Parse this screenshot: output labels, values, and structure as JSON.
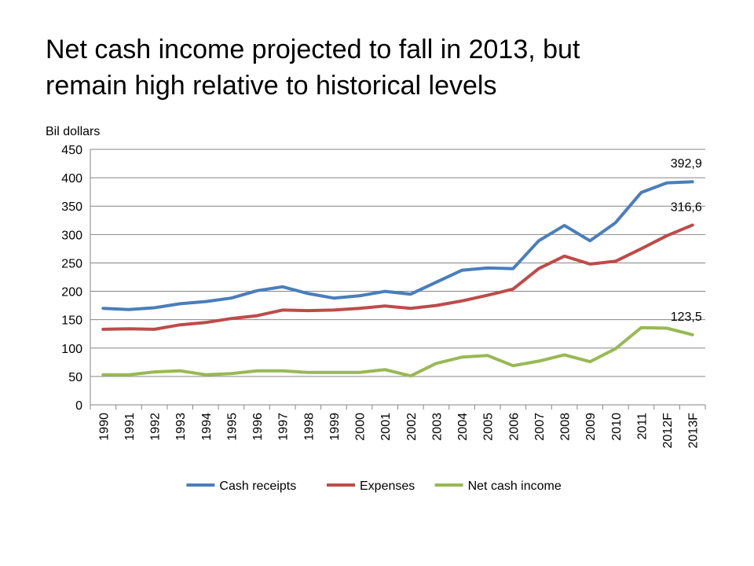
{
  "slide": {
    "title_line1": "Net cash income projected to fall in 2013, but",
    "title_line2": "remain high relative to historical levels"
  },
  "chart_data": {
    "type": "line",
    "title": "",
    "ylabel": "Bil dollars",
    "xlabel": "",
    "ylim": [
      0,
      450
    ],
    "yticks": [
      0,
      50,
      100,
      150,
      200,
      250,
      300,
      350,
      400,
      450
    ],
    "grid": true,
    "legend_position": "bottom",
    "categories": [
      "1990",
      "1991",
      "1992",
      "1993",
      "1994",
      "1995",
      "1996",
      "1997",
      "1998",
      "1999",
      "2000",
      "2001",
      "2002",
      "2003",
      "2004",
      "2005",
      "2006",
      "2007",
      "2008",
      "2009",
      "2010",
      "2011",
      "2012F",
      "2013F"
    ],
    "series": [
      {
        "name": "Cash receipts",
        "color": "#4a7ebb",
        "values": [
          170,
          168,
          171,
          178,
          182,
          188,
          201,
          208,
          196,
          188,
          192,
          200,
          195,
          216,
          237,
          241,
          240,
          289,
          316,
          289,
          321,
          374,
          391,
          392.9
        ]
      },
      {
        "name": "Expenses",
        "color": "#be4b48",
        "values": [
          133,
          134,
          133,
          141,
          145,
          152,
          157,
          167,
          166,
          167,
          170,
          174,
          170,
          175,
          183,
          193,
          204,
          240,
          262,
          248,
          253,
          275,
          298,
          316.6
        ]
      },
      {
        "name": "Net cash income",
        "color": "#98b954",
        "values": [
          53,
          53,
          58,
          60,
          53,
          55,
          60,
          60,
          57,
          57,
          57,
          62,
          51,
          73,
          84,
          87,
          69,
          77,
          88,
          76,
          99,
          136,
          135,
          123.5
        ]
      }
    ],
    "annotations": [
      {
        "series": "Cash receipts",
        "category": "2013F",
        "text": "392,9"
      },
      {
        "series": "Expenses",
        "category": "2013F",
        "text": "316,6"
      },
      {
        "series": "Net cash income",
        "category": "2013F",
        "text": "123,5"
      }
    ]
  }
}
